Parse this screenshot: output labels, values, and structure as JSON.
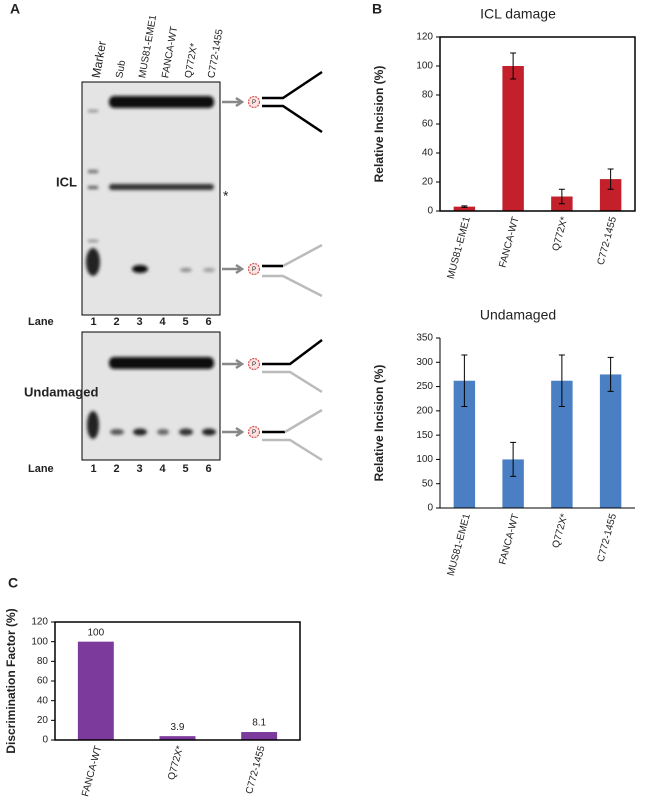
{
  "panel_labels": [
    "A",
    "B",
    "C"
  ],
  "gel": {
    "lane_headers": [
      "Marker",
      "Sub",
      "MUS81-EME1",
      "FANCA-WT",
      "Q772X*",
      "C772-1455"
    ],
    "lane_numbers": [
      "1",
      "2",
      "3",
      "4",
      "5",
      "6"
    ],
    "lane_label": "Lane",
    "top_label": "ICL",
    "bottom_label": "Undamaged",
    "asterisk": "*"
  },
  "chart_data": [
    {
      "type": "bar",
      "title": "ICL damage",
      "y_label": "Relative Incision (%)",
      "categories": [
        "MUS81-EME1",
        "FANCA-WT",
        "Q772X*",
        "C772-1455"
      ],
      "values": [
        3,
        100,
        10,
        22
      ],
      "errors": [
        0.5,
        9,
        5,
        7
      ],
      "color": "#c3202b",
      "ylim": [
        0,
        120
      ],
      "yticks": [
        0,
        20,
        40,
        60,
        80,
        100,
        120
      ],
      "frame": true
    },
    {
      "type": "bar",
      "title": "Undamaged",
      "y_label": "Relative Incision (%)",
      "categories": [
        "MUS81-EME1",
        "FANCA-WT",
        "Q772X*",
        "C772-1455"
      ],
      "values": [
        262,
        100,
        262,
        275
      ],
      "errors": [
        53,
        35,
        53,
        35
      ],
      "color": "#4a80c3",
      "ylim": [
        0,
        350
      ],
      "yticks": [
        0,
        50,
        100,
        150,
        200,
        250,
        300,
        350
      ],
      "frame": false
    },
    {
      "type": "bar",
      "y_label": "Discrimination Factor (%)",
      "categories": [
        "FANCA-WT",
        "Q772X*",
        "C772-1455"
      ],
      "values": [
        100,
        3.9,
        8.1
      ],
      "color": "#7b3a9c",
      "ylim": [
        0,
        120
      ],
      "yticks": [
        0,
        20,
        40,
        60,
        80,
        100,
        120
      ],
      "frame": true,
      "data_labels": true
    }
  ]
}
